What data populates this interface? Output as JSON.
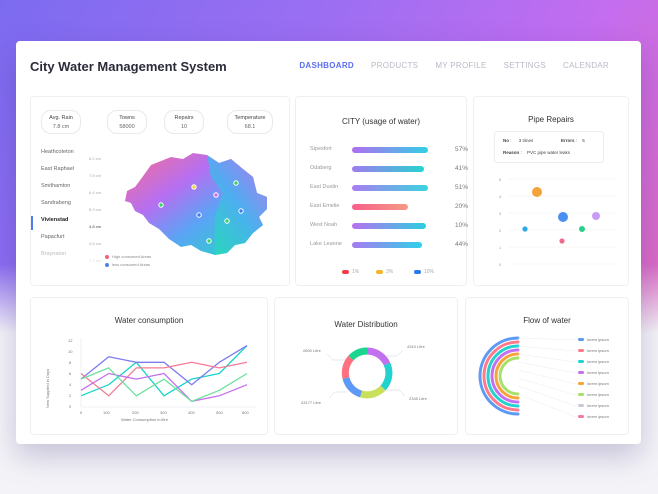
{
  "app": {
    "title": "City Water Management System"
  },
  "nav": [
    "DASHBOARD",
    "PRODUCTS",
    "MY PROFILE",
    "SETTINGS",
    "CALENDAR"
  ],
  "stats": [
    {
      "label": "Avg. Rain",
      "value": "7.8 cm"
    },
    {
      "label": "Towns",
      "value": "58000"
    },
    {
      "label": "Repairs",
      "value": "10"
    },
    {
      "label": "Temperature",
      "value": "68.1"
    }
  ],
  "places": [
    {
      "name": "Heathcoteton",
      "sub": "6.2 cm"
    },
    {
      "name": "East Raphael",
      "sub": "7.8 cm"
    },
    {
      "name": "Smithamton",
      "sub": "6.4 cm"
    },
    {
      "name": "Sandrabeng",
      "sub": "8.9 cm"
    },
    {
      "name": "Vivienstad",
      "sub": "4.8 cm",
      "active": true
    },
    {
      "name": "Papacfurt",
      "sub": "4.5 cm"
    },
    {
      "name": "Braynaton",
      "sub": "7.2 cm"
    }
  ],
  "map_legend": {
    "high": "High consumed Areas",
    "less": "less consumed Areas"
  },
  "city_usage": {
    "title": "CITY (usage of water)",
    "rows": [
      {
        "name": "Sipesfort",
        "pct": "57%",
        "frac": 0.57,
        "color": "#33cfe6"
      },
      {
        "name": "Odaberg",
        "pct": "41%",
        "frac": 0.41,
        "color": "#26d3cf"
      },
      {
        "name": "East Dustin",
        "pct": "51%",
        "frac": 0.51,
        "color": "#3ad4df"
      },
      {
        "name": "East Emelie",
        "pct": "20%",
        "frac": 0.2,
        "color": "#f57b86"
      },
      {
        "name": "West Noah",
        "pct": "10%",
        "frac": 0.1,
        "color": "#2bcfe1"
      },
      {
        "name": "Lake Leanne",
        "pct": "44%",
        "frac": 0.44,
        "color": "#30d0e8"
      }
    ],
    "legend": [
      "1%",
      "3%",
      "10%"
    ]
  },
  "pipe": {
    "title": "Pipe Repairs",
    "no_label": "No",
    "no_value": "3 times",
    "errors_label": "Errors",
    "errors_value": "5",
    "reason_label": "Reason",
    "reason_value": "PVC pipe water leaks",
    "yticks": [
      "5",
      "4",
      "3",
      "2",
      "1",
      "0"
    ]
  },
  "consumption": {
    "title": "Water consumption",
    "ylabel": "New Supplied in Days",
    "xlabel": "Water Consumption in litre",
    "yticks": [
      "12",
      "10",
      "8",
      "6",
      "4",
      "2",
      "0"
    ],
    "xticks": [
      "0",
      "100",
      "200",
      "300",
      "400",
      "500",
      "600"
    ]
  },
  "distribution": {
    "title": "Water Distribution",
    "labels": [
      "2800 Litre",
      "4310 Litre",
      "33177 Litre",
      "2345 Litre"
    ]
  },
  "flow": {
    "title": "Flow of water",
    "items": [
      "lorem ipsum",
      "lorem ipsum",
      "lorem ipsum",
      "lorem ipsum",
      "lorem ipsum",
      "lorem ipsum",
      "lorem ipsum",
      "lorem ipsum"
    ]
  },
  "chart_data": {
    "type": "line",
    "title": "Water consumption",
    "xlabel": "Water Consumption in litre",
    "ylabel": "New Supplied in Days",
    "x": [
      0,
      100,
      200,
      300,
      400,
      500,
      600
    ],
    "ylim": [
      0,
      12
    ],
    "series": [
      {
        "values": [
          2,
          4,
          8,
          2,
          5,
          6,
          11
        ],
        "color": "#17d4c8"
      },
      {
        "values": [
          5,
          9,
          8,
          8,
          4,
          8,
          11
        ],
        "color": "#7d7bf0"
      },
      {
        "values": [
          6,
          2,
          7,
          7,
          8,
          7,
          8
        ],
        "color": "#f57c96"
      },
      {
        "values": [
          3,
          6,
          5,
          6,
          1,
          2,
          4
        ],
        "color": "#c56ff0"
      },
      {
        "values": [
          5,
          7,
          2,
          5,
          1,
          3,
          6
        ],
        "color": "#6fe0a0"
      }
    ]
  }
}
